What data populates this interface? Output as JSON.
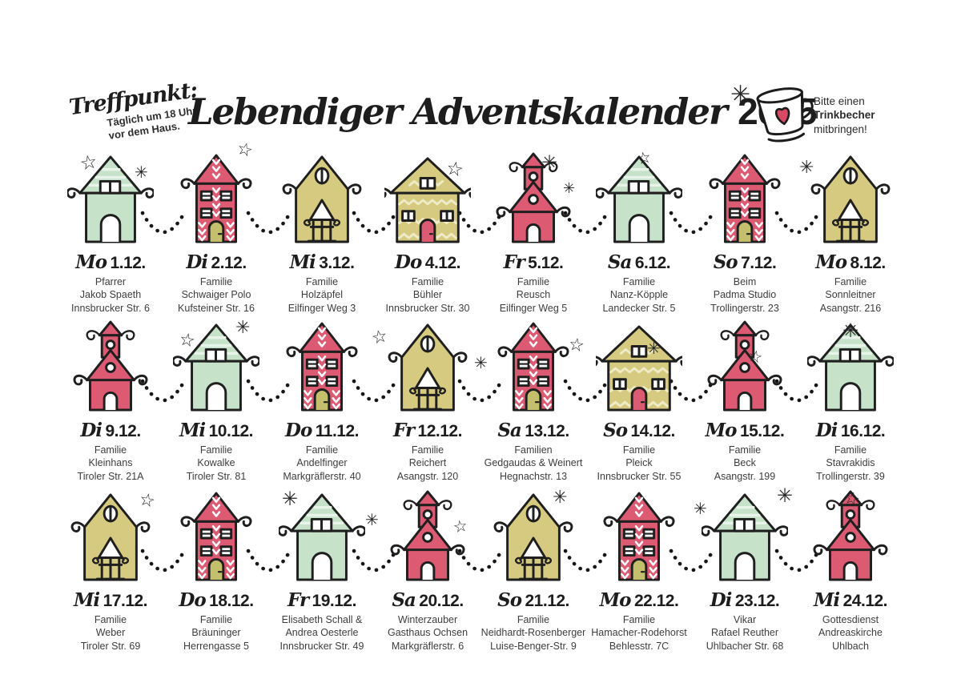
{
  "header": {
    "meeting_point": {
      "title": "Treffpunkt:",
      "line1": "Täglich um 18 Uhr",
      "line2": "vor dem Haus."
    },
    "title": {
      "script": "Lebendiger Adventskalender",
      "year": "2025"
    },
    "cup_note": {
      "line1": "Bitte einen",
      "line2": "Trinkbecher",
      "line3": "mitbringen!"
    }
  },
  "icons": {
    "star": "☆",
    "snowflake": "✳",
    "cup": "cup-with-heart"
  },
  "palette": {
    "red": "#dc5a72",
    "mint": "#c6e3ca",
    "olive": "#d5ca7f",
    "mint_stripe": "#e8f4e9",
    "olive_stripe": "#eeebc7",
    "door_olive": "#c4bf6d",
    "line": "#1f1f1f",
    "heart": "#d84a64"
  },
  "days": [
    {
      "day": "Mo",
      "date": "1.12.",
      "house": "mint-tall",
      "lines": [
        "Pfarrer",
        "Jakob Spaeth",
        "Innsbrucker Str. 6"
      ]
    },
    {
      "day": "Di",
      "date": "2.12.",
      "house": "red-chevron",
      "lines": [
        "Familie",
        "Schwaiger Polo",
        "Kufsteiner Str. 16"
      ]
    },
    {
      "day": "Mi",
      "date": "3.12.",
      "house": "olive-porch",
      "lines": [
        "Familie",
        "Holzäpfel",
        "Eilfinger Weg 3"
      ]
    },
    {
      "day": "Do",
      "date": "4.12.",
      "house": "olive-zigzag",
      "lines": [
        "Familie",
        "Bühler",
        "Innsbrucker Str. 30"
      ]
    },
    {
      "day": "Fr",
      "date": "5.12.",
      "house": "red-church",
      "lines": [
        "Familie",
        "Reusch",
        "Eilfinger Weg 5"
      ]
    },
    {
      "day": "Sa",
      "date": "6.12.",
      "house": "mint-tall",
      "lines": [
        "Familie",
        "Nanz-Köpple",
        "Landecker Str. 5"
      ]
    },
    {
      "day": "So",
      "date": "7.12.",
      "house": "red-chevron",
      "lines": [
        "Beim",
        "Padma Studio",
        "Trollingerstr. 23"
      ]
    },
    {
      "day": "Mo",
      "date": "8.12.",
      "house": "olive-porch",
      "lines": [
        "Familie",
        "Sonnleitner",
        "Asangstr. 216"
      ]
    },
    {
      "day": "Di",
      "date": "9.12.",
      "house": "red-church",
      "lines": [
        "Familie",
        "Kleinhans",
        "Tiroler Str. 21A"
      ]
    },
    {
      "day": "Mi",
      "date": "10.12.",
      "house": "mint-tall",
      "lines": [
        "Familie",
        "Kowalke",
        "Tiroler Str. 81"
      ]
    },
    {
      "day": "Do",
      "date": "11.12.",
      "house": "red-chevron",
      "lines": [
        "Familie",
        "Andelfinger",
        "Markgräflerstr. 40"
      ]
    },
    {
      "day": "Fr",
      "date": "12.12.",
      "house": "olive-porch",
      "lines": [
        "Familie",
        "Reichert",
        "Asangstr. 120"
      ]
    },
    {
      "day": "Sa",
      "date": "13.12.",
      "house": "red-chevron",
      "lines": [
        "Familien",
        "Gedgaudas & Weinert",
        "Hegnachstr. 13"
      ]
    },
    {
      "day": "So",
      "date": "14.12.",
      "house": "olive-zigzag",
      "lines": [
        "Familie",
        "Pleick",
        "Innsbrucker Str. 55"
      ]
    },
    {
      "day": "Mo",
      "date": "15.12.",
      "house": "red-church",
      "lines": [
        "Familie",
        "Beck",
        "Asangstr. 199"
      ]
    },
    {
      "day": "Di",
      "date": "16.12.",
      "house": "mint-tall",
      "lines": [
        "Familie",
        "Stavrakidis",
        "Trollingerstr. 39"
      ]
    },
    {
      "day": "Mi",
      "date": "17.12.",
      "house": "olive-porch",
      "lines": [
        "Familie",
        "Weber",
        "Tiroler Str. 69"
      ]
    },
    {
      "day": "Do",
      "date": "18.12.",
      "house": "red-chevron",
      "lines": [
        "Familie",
        "Bräuninger",
        "Herrengasse 5"
      ]
    },
    {
      "day": "Fr",
      "date": "19.12.",
      "house": "mint-tall",
      "lines": [
        "Elisabeth Schall &",
        "Andrea Oesterle",
        "Innsbrucker Str. 49"
      ]
    },
    {
      "day": "Sa",
      "date": "20.12.",
      "house": "red-church",
      "lines": [
        "Winterzauber",
        "Gasthaus Ochsen",
        "Markgräflerstr. 6"
      ]
    },
    {
      "day": "So",
      "date": "21.12.",
      "house": "olive-porch",
      "lines": [
        "Familie",
        "Neidhardt-Rosenberger",
        "Luise-Benger-Str. 9"
      ]
    },
    {
      "day": "Mo",
      "date": "22.12.",
      "house": "red-chevron",
      "lines": [
        "Familie",
        "Hamacher-Rodehorst",
        "Behlesstr. 7C"
      ]
    },
    {
      "day": "Di",
      "date": "23.12.",
      "house": "mint-tall",
      "lines": [
        "Vikar",
        "Rafael Reuther",
        "Uhlbacher Str. 68"
      ]
    },
    {
      "day": "Mi",
      "date": "24.12.",
      "house": "red-church",
      "lines": [
        "Gottesdienst",
        "Andreaskirche",
        "Uhlbach"
      ]
    }
  ]
}
